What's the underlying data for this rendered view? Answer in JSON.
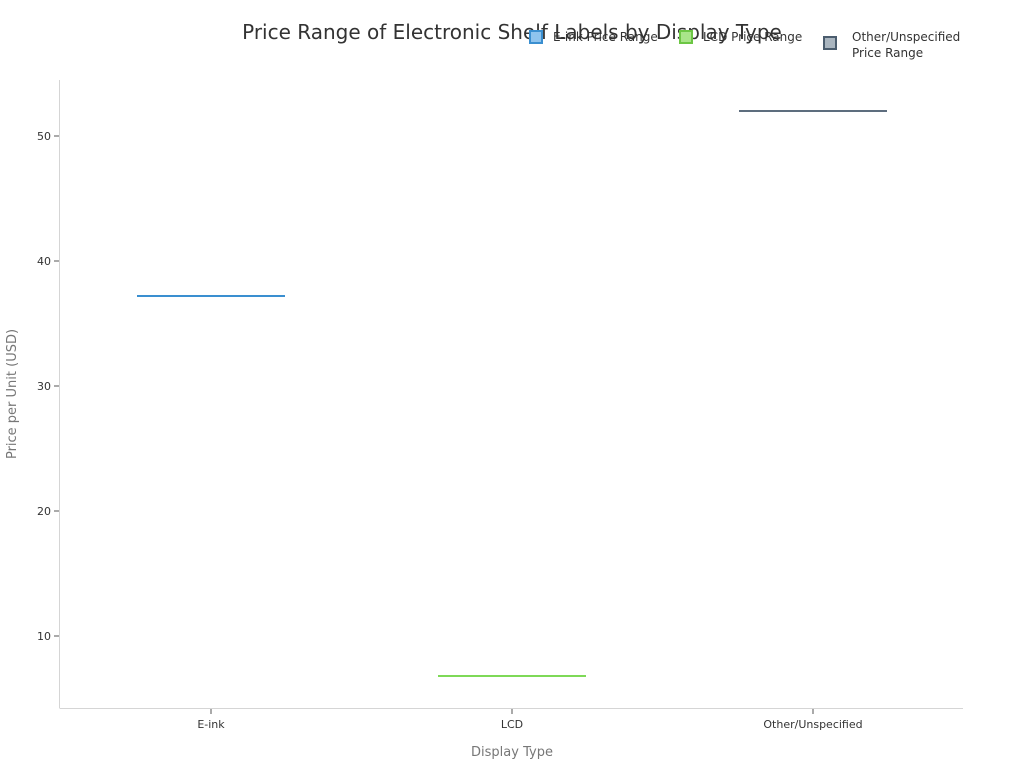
{
  "chart_data": {
    "type": "bar",
    "subtype": "floating-range (min=max, rendered as horizontal lines)",
    "title": "Price Range of Electronic Shelf Labels by Display Type",
    "xlabel": "Display Type",
    "ylabel": "Price per Unit (USD)",
    "categories": [
      "E-ink",
      "LCD",
      "Other/Unspecified"
    ],
    "series": [
      {
        "name": "E-ink Price Range",
        "category": "E-ink",
        "low": 37.2,
        "high": 37.2,
        "color": "#3a8fd0"
      },
      {
        "name": "LCD Price Range",
        "category": "LCD",
        "low": 6.8,
        "high": 6.8,
        "color": "#7ed957"
      },
      {
        "name": "Other/Unspecified Price Range",
        "category": "Other/Unspecified",
        "low": 52.0,
        "high": 52.0,
        "color": "#5d6d7e"
      }
    ],
    "yticks": [
      10,
      20,
      30,
      40,
      50
    ],
    "ylim": [
      4.4,
      54.6
    ],
    "grid": false,
    "legend_position": "top-right"
  },
  "legend": {
    "items": [
      {
        "label": "E-ink Price Range",
        "border": "#3a8fd0",
        "fill": "#8fc4ee"
      },
      {
        "label": "LCD Price Range",
        "border": "#6cc644",
        "fill": "#a9e58a"
      },
      {
        "label_line1": "Other/Unspecified",
        "label_line2": "Price Range",
        "border": "#4b5d6e",
        "fill": "#aab6c0"
      }
    ]
  },
  "axes": {
    "y_ticks": [
      "10",
      "20",
      "30",
      "40",
      "50"
    ],
    "x_ticks": [
      "E-ink",
      "LCD",
      "Other/Unspecified"
    ]
  }
}
